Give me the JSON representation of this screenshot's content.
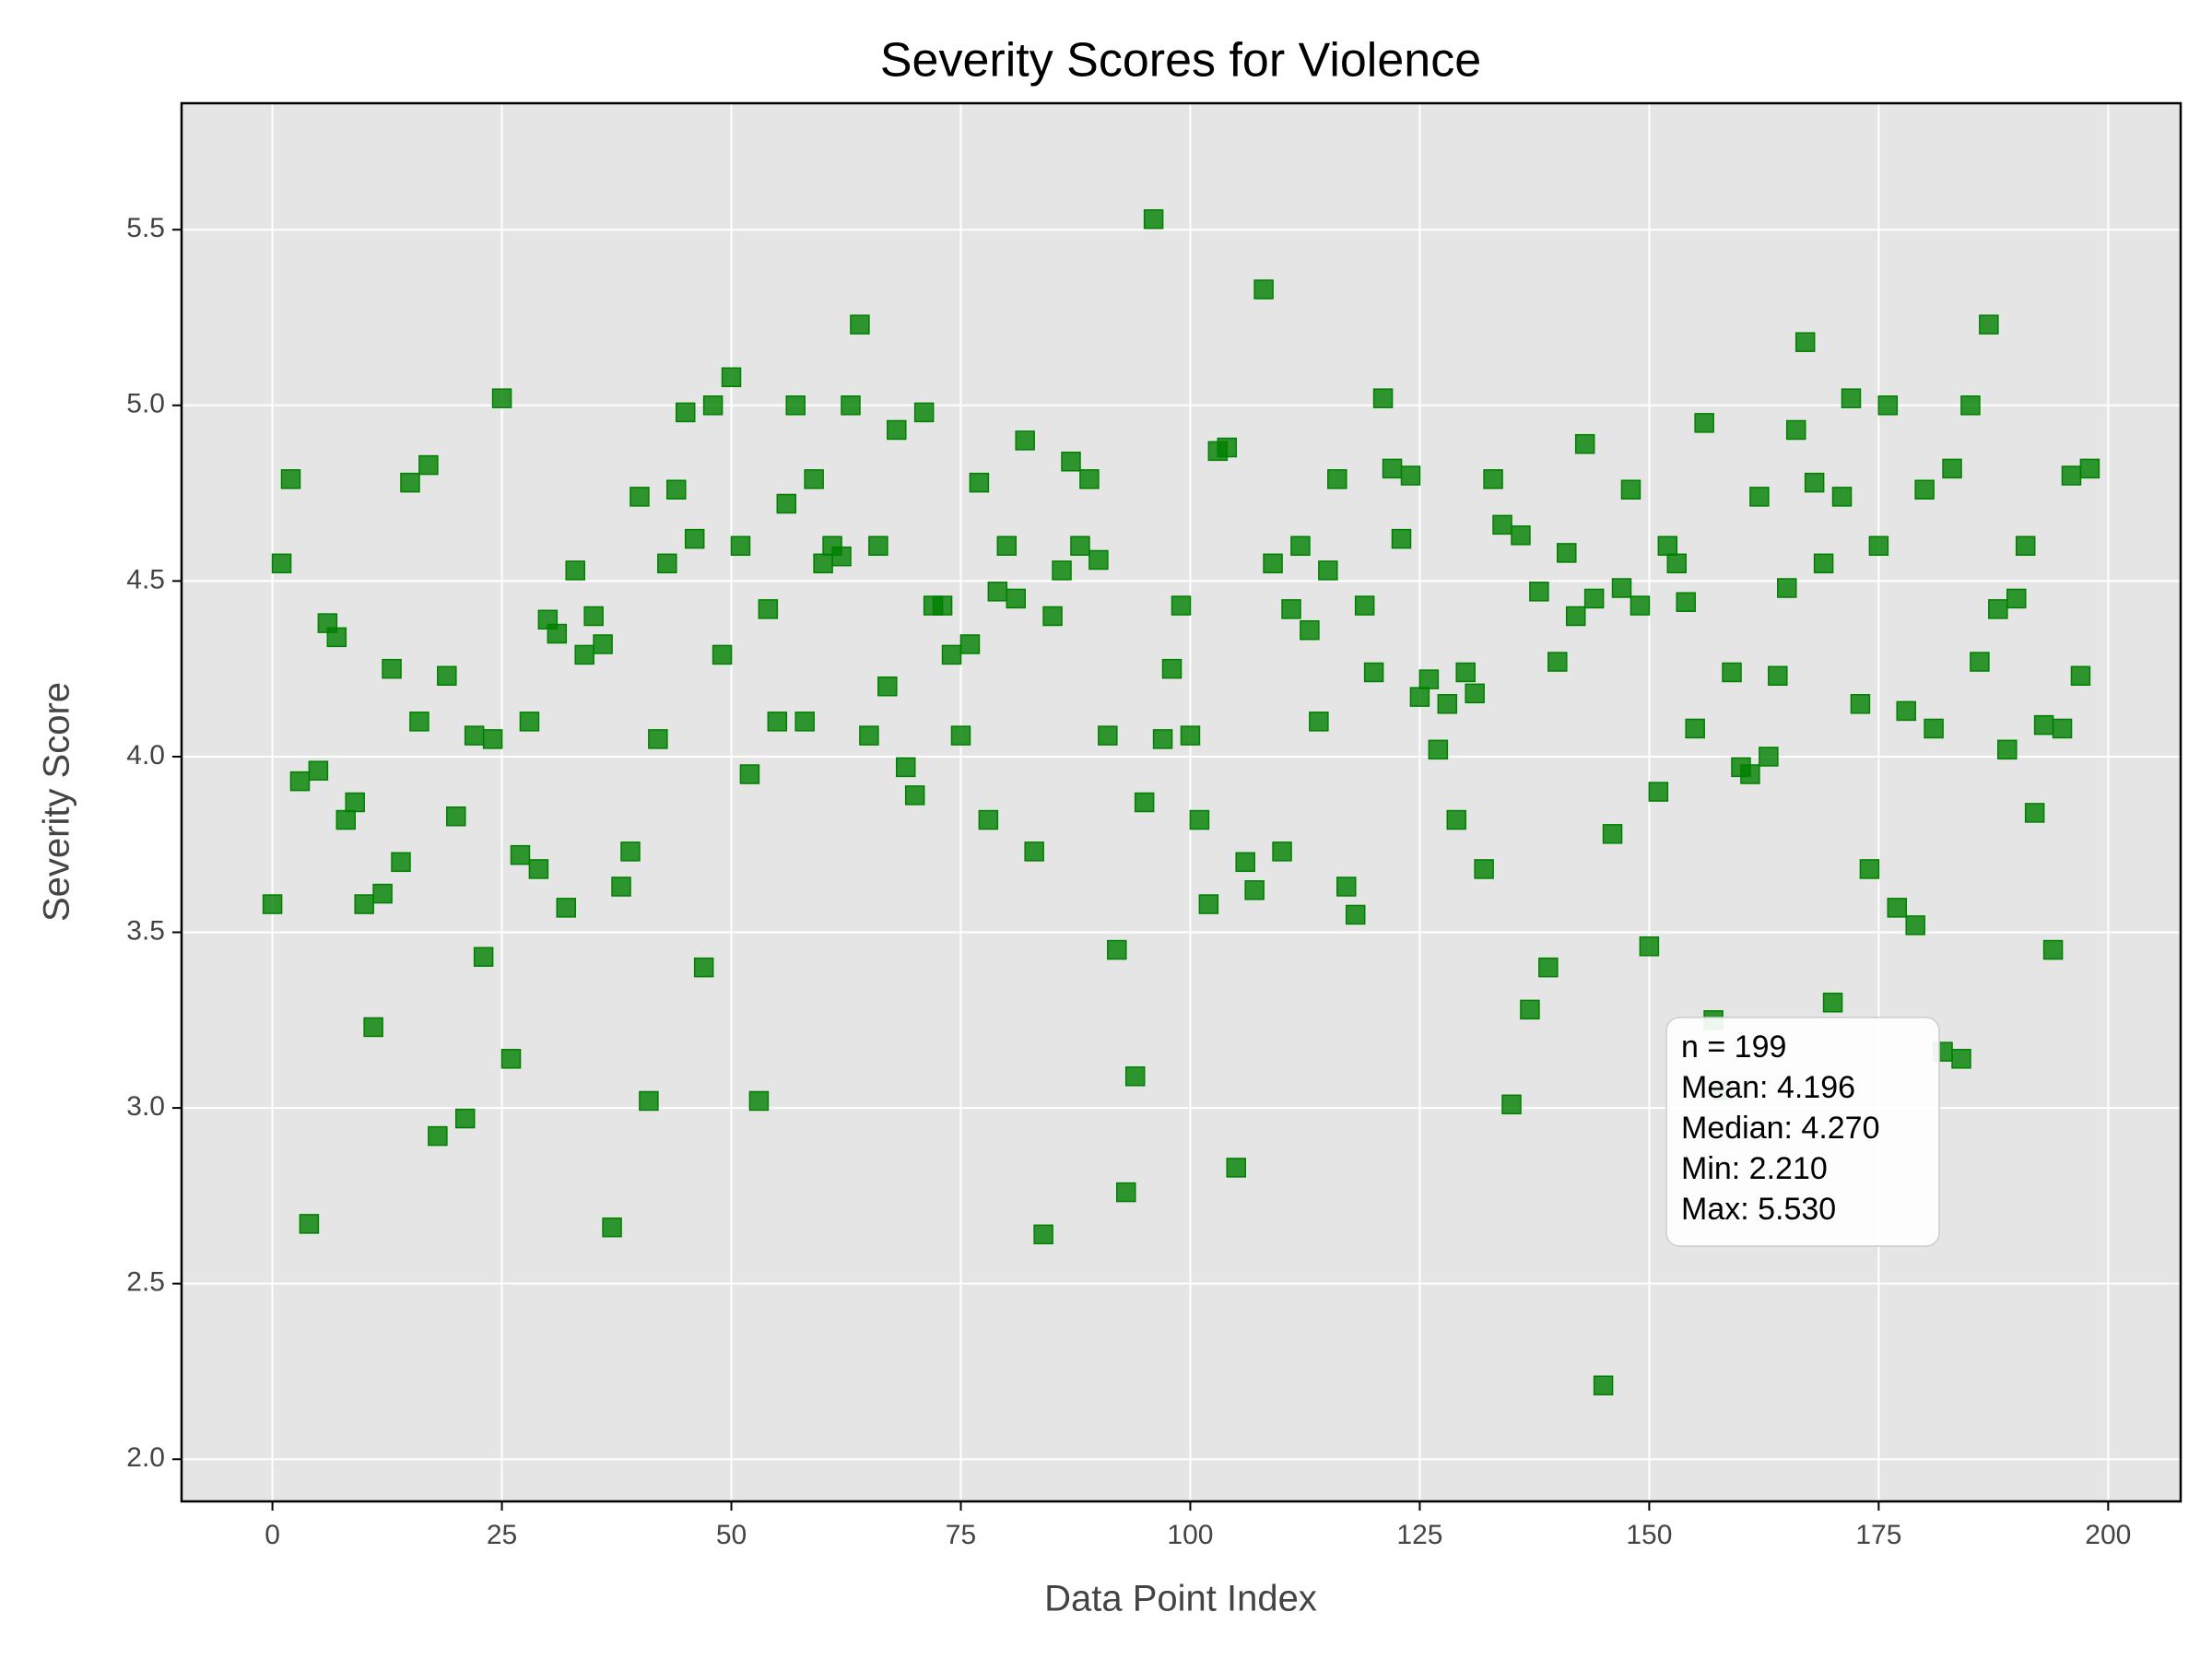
{
  "chart_data": {
    "type": "scatter",
    "title": "Severity Scores for Violence",
    "xlabel": "Data Point Index",
    "ylabel": "Severity Score",
    "color": "#008000",
    "marker": "square",
    "grid": true,
    "xlim": [
      -9.9,
      207.9
    ],
    "ylim": [
      1.88,
      5.86
    ],
    "xticks": [
      0,
      25,
      50,
      75,
      100,
      125,
      150,
      175,
      200
    ],
    "yticks": [
      {
        "value": 2,
        "label": "2.0"
      },
      2.5,
      {
        "value": 3,
        "label": "3.0"
      },
      3.5,
      {
        "value": 4,
        "label": "4.0"
      },
      4.5,
      {
        "value": 5,
        "label": "5.0"
      },
      5.5
    ],
    "x": [
      0,
      1,
      2,
      3,
      4,
      5,
      6,
      7,
      8,
      9,
      10,
      11,
      12,
      13,
      14,
      15,
      16,
      17,
      18,
      19,
      20,
      21,
      22,
      23,
      24,
      25,
      26,
      27,
      28,
      29,
      30,
      31,
      32,
      33,
      34,
      35,
      36,
      37,
      38,
      39,
      40,
      41,
      42,
      43,
      44,
      45,
      46,
      47,
      48,
      49,
      50,
      51,
      52,
      53,
      54,
      55,
      56,
      57,
      58,
      59,
      60,
      61,
      62,
      63,
      64,
      65,
      66,
      67,
      68,
      69,
      70,
      71,
      72,
      73,
      74,
      75,
      76,
      77,
      78,
      79,
      80,
      81,
      82,
      83,
      84,
      85,
      86,
      87,
      88,
      89,
      90,
      91,
      92,
      93,
      94,
      95,
      96,
      97,
      98,
      99,
      100,
      101,
      102,
      103,
      104,
      105,
      106,
      107,
      108,
      109,
      110,
      111,
      112,
      113,
      114,
      115,
      116,
      117,
      118,
      119,
      120,
      121,
      122,
      123,
      124,
      125,
      126,
      127,
      128,
      129,
      130,
      131,
      132,
      133,
      134,
      135,
      136,
      137,
      138,
      139,
      140,
      141,
      142,
      143,
      144,
      145,
      146,
      147,
      148,
      149,
      150,
      151,
      152,
      153,
      154,
      155,
      156,
      157,
      158,
      159,
      160,
      161,
      162,
      163,
      164,
      165,
      166,
      167,
      168,
      169,
      170,
      171,
      172,
      173,
      174,
      175,
      176,
      177,
      178,
      179,
      180,
      181,
      182,
      183,
      184,
      185,
      186,
      187,
      188,
      189,
      190,
      191,
      192,
      193,
      194,
      195,
      196,
      197,
      198
    ],
    "values": [
      3.58,
      4.55,
      4.79,
      3.93,
      2.67,
      3.96,
      4.38,
      4.34,
      3.82,
      3.87,
      3.58,
      3.23,
      3.61,
      4.25,
      3.7,
      4.78,
      4.1,
      4.83,
      2.92,
      4.23,
      3.83,
      2.97,
      4.06,
      3.43,
      4.05,
      5.02,
      3.14,
      3.72,
      4.1,
      3.68,
      4.39,
      4.35,
      3.57,
      4.53,
      4.29,
      4.4,
      4.32,
      2.66,
      3.63,
      3.73,
      4.74,
      3.02,
      4.05,
      4.55,
      4.76,
      4.98,
      4.62,
      3.4,
      5.0,
      4.29,
      5.08,
      4.6,
      3.95,
      3.02,
      4.42,
      4.1,
      4.72,
      5.0,
      4.1,
      4.79,
      4.55,
      4.6,
      4.57,
      5.0,
      5.23,
      4.06,
      4.6,
      4.2,
      4.93,
      3.97,
      3.89,
      4.98,
      4.43,
      4.43,
      4.29,
      4.06,
      4.32,
      4.78,
      3.82,
      4.47,
      4.6,
      4.45,
      4.9,
      3.73,
      2.64,
      4.4,
      4.53,
      4.84,
      4.6,
      4.79,
      4.56,
      4.06,
      3.45,
      2.76,
      3.09,
      3.87,
      5.53,
      4.05,
      4.25,
      4.43,
      4.06,
      3.82,
      3.58,
      4.87,
      4.88,
      2.83,
      3.7,
      3.62,
      5.33,
      4.55,
      3.73,
      4.42,
      4.6,
      4.36,
      4.1,
      4.53,
      4.79,
      3.63,
      3.55,
      4.43,
      4.24,
      5.02,
      4.82,
      4.62,
      4.8,
      4.17,
      4.22,
      4.02,
      4.15,
      3.82,
      4.24,
      4.18,
      3.68,
      4.79,
      4.66,
      3.01,
      4.63,
      3.28,
      4.47,
      3.4,
      4.27,
      4.58,
      4.4,
      4.89,
      4.45,
      2.21,
      3.78,
      4.48,
      4.76,
      4.43,
      3.46,
      3.9,
      4.6,
      4.55,
      4.44,
      4.08,
      4.95,
      3.25,
      3.05,
      4.24,
      3.97,
      3.95,
      4.74,
      4.0,
      4.23,
      4.48,
      4.93,
      5.18,
      4.78,
      4.55,
      3.3,
      4.74,
      5.02,
      4.15,
      3.68,
      4.6,
      5.0,
      3.57,
      4.13,
      3.52,
      4.76,
      4.08,
      3.16,
      4.82,
      3.14,
      5.0,
      4.27,
      5.23,
      4.42,
      4.02,
      4.45,
      4.6,
      3.84,
      4.09,
      3.45,
      4.08,
      4.8,
      4.23,
      4.82
    ],
    "annotations": [
      "n = 199",
      "Mean: 4.196",
      "Median: 4.270",
      "Min: 2.210",
      "Max: 5.530"
    ]
  }
}
